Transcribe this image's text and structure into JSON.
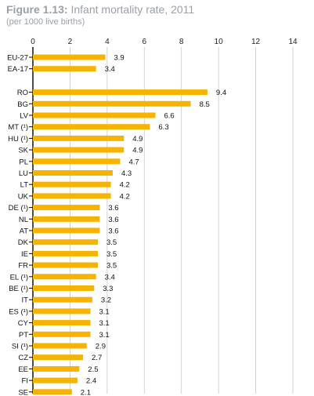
{
  "chart_data": {
    "type": "bar",
    "orientation": "horizontal",
    "title_label": "Figure 1.13:",
    "title_text": "Infant mortality rate, 2011",
    "subtitle": "(per 1000 live births)",
    "xlim": [
      0,
      14
    ],
    "x_ticks": [
      "0",
      "2",
      "4",
      "6",
      "8",
      "10",
      "12",
      "14"
    ],
    "grid": true,
    "bar_color": "#f6b400",
    "categories": [
      "EU-27",
      "EA-17",
      "RO",
      "BG",
      "LV",
      "MT (¹)",
      "HU (¹)",
      "SK",
      "PL",
      "LU",
      "LT",
      "UK",
      "DE (¹)",
      "NL",
      "AT",
      "DK",
      "IE",
      "FR",
      "EL (¹)",
      "BE (¹)",
      "IT",
      "ES (¹)",
      "CY",
      "PT",
      "SI (¹)",
      "CZ",
      "EE",
      "FI",
      "SE"
    ],
    "values": [
      3.9,
      3.4,
      9.4,
      8.5,
      6.6,
      6.3,
      4.9,
      4.9,
      4.7,
      4.3,
      4.2,
      4.2,
      3.6,
      3.6,
      3.6,
      3.5,
      3.5,
      3.5,
      3.4,
      3.3,
      3.2,
      3.1,
      3.1,
      3.1,
      2.9,
      2.7,
      2.5,
      2.4,
      2.1
    ],
    "value_labels": [
      "3.9",
      "3.4",
      "9.4",
      "8.5",
      "6.6",
      "6.3",
      "4.9",
      "4.9",
      "4.7",
      "4.3",
      "4.2",
      "4.2",
      "3.6",
      "3.6",
      "3.6",
      "3.5",
      "3.5",
      "3.5",
      "3.4",
      "3.3",
      "3.2",
      "3.1",
      "3.1",
      "3.1",
      "2.9",
      "2.7",
      "2.5",
      "2.4",
      "2.1"
    ]
  }
}
